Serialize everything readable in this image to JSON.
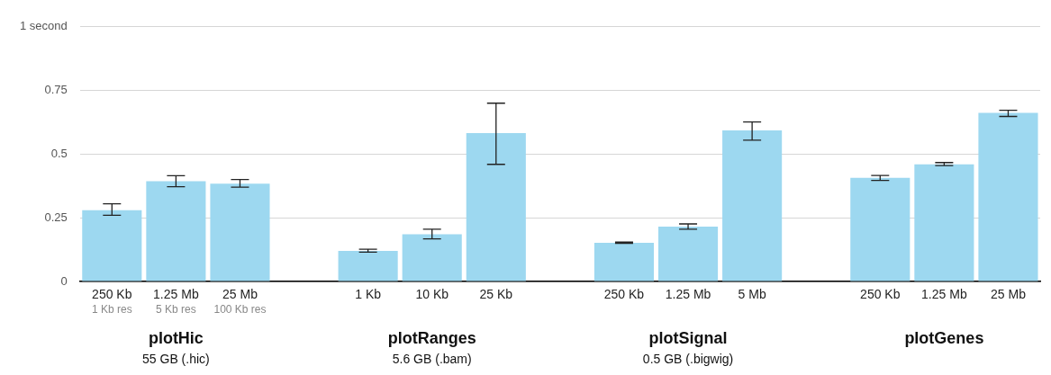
{
  "chart_data": {
    "type": "bar",
    "categories": [
      "250 Kb\n1 Kb res",
      "1.25 Mb\n5 Kb res",
      "25 Mb\n100 Kb res",
      null,
      "1 Kb",
      "10 Kb",
      "25 Kb",
      null,
      "250 Kb",
      "1.25 Mb",
      "5 Mb",
      null,
      "250 Kb",
      "1.25 Mb",
      "25 Mb"
    ],
    "values": [
      0.28,
      0.394,
      0.384,
      null,
      0.12,
      0.185,
      0.583,
      null,
      0.152,
      0.215,
      0.593,
      null,
      0.407,
      0.46,
      0.662
    ],
    "errors": [
      [
        0.26,
        0.305
      ],
      [
        0.372,
        0.415
      ],
      [
        0.37,
        0.4
      ],
      null,
      [
        0.115,
        0.127
      ],
      [
        0.167,
        0.205
      ],
      [
        0.46,
        0.7
      ],
      null,
      [
        0.15,
        0.155
      ],
      [
        0.205,
        0.226
      ],
      [
        0.555,
        0.626
      ],
      null,
      [
        0.397,
        0.416
      ],
      [
        0.455,
        0.467
      ],
      [
        0.648,
        0.672
      ]
    ],
    "color": "#9dd8f0",
    "ylim": [
      0,
      1
    ],
    "yticks": [
      0,
      0.25,
      0.5,
      0.75,
      {
        "value": 1,
        "label": "1 second"
      }
    ],
    "grid": "y",
    "annotations": [
      "plotHic\n55 GB (.hic)",
      "plotRanges\n5.6 GB (.bam)",
      "plotSignal\n0.5 GB (.bigwig)",
      "plotGenes"
    ]
  }
}
